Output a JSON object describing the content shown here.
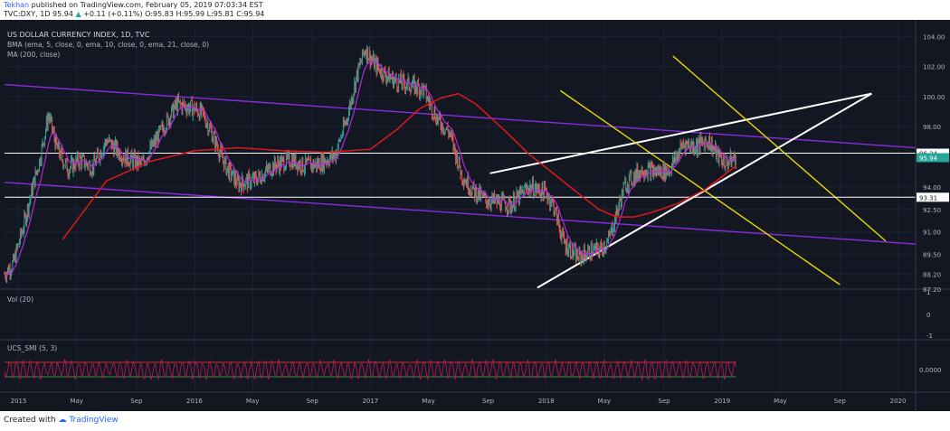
{
  "header": {
    "author": "Tekhan",
    "published_text": "published on TradingView.com, February 05, 2019 07:03:34 EST",
    "symbol_line_prefix": "TVC:DXY, 1D 95.94",
    "change_arrow": "▲",
    "change_text": "+0.11 (+0.11%) O:95.83 H:95.99 L:95.81 C:95.94"
  },
  "footer": {
    "created_with": "Created with",
    "brand": "TradingView"
  },
  "colors": {
    "background": "#131722",
    "grid": "#1e2230",
    "up": "#26a69a",
    "down": "#ef5350",
    "ma200": "#e01818",
    "ema": "#b42bd8",
    "channel": "#8a2be2",
    "wedge": "#ffffff",
    "parallel": "#e6d800",
    "osc_line": "#c2185b",
    "osc_upper": "#d32f2f",
    "osc_lower": "#388e3c"
  },
  "chart_data": [
    {
      "type": "line",
      "title": "US DOLLAR CURRENCY INDEX, 1D, TVC",
      "indicators": [
        "BMA (ema, 5, close, 0, ema, 10, close, 0, ema, 21, close, 0)",
        "MA (200, close)"
      ],
      "x_ticks": [
        "2015",
        "May",
        "Sep",
        "2016",
        "May",
        "Sep",
        "2017",
        "May",
        "Sep",
        "2018",
        "May",
        "Sep",
        "2019",
        "May",
        "Sep",
        "2020"
      ],
      "y_ticks": [
        "104.00",
        "102.00",
        "100.00",
        "98.00",
        "94.00",
        "92.50",
        "91.00",
        "89.50",
        "88.20",
        "87.20"
      ],
      "price_labels": {
        "upper": "96.24",
        "last": "95.94",
        "lower": "93.31"
      },
      "ylim": [
        87.2,
        104.8
      ],
      "series": [
        {
          "name": "DXY",
          "x": [
            2014.92,
            2014.97,
            2015.03,
            2015.08,
            2015.12,
            2015.17,
            2015.22,
            2015.28,
            2015.35,
            2015.42,
            2015.5,
            2015.6,
            2015.7,
            2015.8,
            2015.9,
            2016.0,
            2016.05,
            2016.1,
            2016.18,
            2016.25,
            2016.35,
            2016.45,
            2016.55,
            2016.62,
            2016.7,
            2016.8,
            2016.87,
            2016.92,
            2016.97,
            2017.02,
            2017.08,
            2017.15,
            2017.22,
            2017.3,
            2017.38,
            2017.45,
            2017.52,
            2017.58,
            2017.66,
            2017.72,
            2017.8,
            2017.9,
            2018.0,
            2018.04,
            2018.1,
            2018.18,
            2018.25,
            2018.3,
            2018.35,
            2018.45,
            2018.55,
            2018.62,
            2018.7,
            2018.78,
            2018.85,
            2018.92,
            2018.98,
            2019.02,
            2019.08
          ],
          "values": [
            88.2,
            88.9,
            91.5,
            94.0,
            95.8,
            98.8,
            96.5,
            95.2,
            95.8,
            95.3,
            97.1,
            96.0,
            95.5,
            97.5,
            99.5,
            99.2,
            98.8,
            97.5,
            95.3,
            94.2,
            94.5,
            95.4,
            95.8,
            95.4,
            95.5,
            96.1,
            98.7,
            101.3,
            103.2,
            102.2,
            101.5,
            101.0,
            100.8,
            100.5,
            98.5,
            97.6,
            94.8,
            93.8,
            93.1,
            93.0,
            92.8,
            94.0,
            93.6,
            92.8,
            90.3,
            89.3,
            89.7,
            89.8,
            90.3,
            94.2,
            95.2,
            95.0,
            95.1,
            96.9,
            96.7,
            97.1,
            96.0,
            95.6,
            95.94
          ]
        },
        {
          "name": "MA (200, close)",
          "x": [
            2015.25,
            2015.5,
            2015.75,
            2016.0,
            2016.25,
            2016.5,
            2016.75,
            2017.0,
            2017.15,
            2017.28,
            2017.4,
            2017.5,
            2017.6,
            2017.75,
            2017.9,
            2018.05,
            2018.2,
            2018.3,
            2018.4,
            2018.5,
            2018.6,
            2018.75,
            2018.9,
            2019.08
          ],
          "values": [
            90.5,
            94.4,
            95.7,
            96.4,
            96.6,
            96.4,
            96.3,
            96.5,
            97.8,
            99.2,
            99.9,
            100.2,
            99.5,
            97.9,
            96.2,
            94.8,
            93.4,
            92.5,
            92.0,
            92.0,
            92.3,
            92.9,
            93.8,
            95.4
          ]
        }
      ],
      "trendlines": [
        {
          "name": "channel-upper",
          "color": "purple",
          "from": [
            2014.92,
            100.8
          ],
          "to": [
            2020.1,
            96.6
          ]
        },
        {
          "name": "channel-lower",
          "color": "purple",
          "from": [
            2014.92,
            94.3
          ],
          "to": [
            2020.1,
            90.2
          ]
        },
        {
          "name": "wedge-upper",
          "color": "white",
          "from": [
            2017.68,
            94.9
          ],
          "to": [
            2019.85,
            100.2
          ]
        },
        {
          "name": "wedge-lower",
          "color": "white",
          "from": [
            2017.95,
            87.3
          ],
          "to": [
            2019.85,
            100.2
          ]
        },
        {
          "name": "parallel-upper",
          "color": "yellow",
          "from": [
            2018.72,
            102.7
          ],
          "to": [
            2019.93,
            90.4
          ]
        },
        {
          "name": "parallel-lower",
          "color": "yellow",
          "from": [
            2018.08,
            100.4
          ],
          "to": [
            2019.67,
            87.5
          ]
        }
      ],
      "horizontal_lines": [
        96.24,
        93.31
      ]
    },
    {
      "type": "bar",
      "title": "Vol (20)",
      "y_ticks": [
        "1",
        "0",
        "-1"
      ],
      "values": []
    },
    {
      "type": "line",
      "title": "UCS_SMI (5, 3)",
      "y_ticks": [
        "0.0000"
      ],
      "upper_band": 0.4,
      "lower_band": -0.4,
      "series": [
        {
          "name": "SMI",
          "x": [
            2014.92,
            2015.0,
            2015.08,
            2015.16,
            2015.24,
            2015.32,
            2015.4,
            2015.48,
            2015.56,
            2015.64,
            2015.72,
            2015.8,
            2015.88,
            2015.96,
            2016.04,
            2016.12,
            2016.2,
            2016.28,
            2016.36,
            2016.44,
            2016.52,
            2016.6,
            2016.68,
            2016.76,
            2016.84,
            2016.92,
            2017.0,
            2017.08,
            2017.16,
            2017.24,
            2017.32,
            2017.4,
            2017.48,
            2017.56,
            2017.64,
            2017.72,
            2017.8,
            2017.88,
            2017.96,
            2018.04,
            2018.12,
            2018.2,
            2018.28,
            2018.36,
            2018.44,
            2018.52,
            2018.6,
            2018.68,
            2018.76,
            2018.84,
            2018.92,
            2019.0,
            2019.08
          ],
          "values": [
            0.3,
            -0.4,
            0.35,
            -0.2,
            0.45,
            -0.45,
            0.2,
            -0.3,
            0.4,
            -0.5,
            0.3,
            -0.1,
            0.45,
            -0.4,
            0.25,
            -0.45,
            0.35,
            -0.2,
            0.4,
            -0.5,
            0.3,
            -0.35,
            0.45,
            -0.25,
            0.5,
            -0.4,
            0.35,
            -0.45,
            0.2,
            -0.3,
            0.4,
            -0.5,
            0.25,
            -0.4,
            0.45,
            -0.3,
            0.35,
            -0.45,
            0.3,
            -0.5,
            0.4,
            -0.2,
            0.45,
            -0.35,
            0.3,
            -0.45,
            0.4,
            -0.3,
            0.35,
            -0.5,
            0.25,
            -0.4,
            0.1
          ]
        }
      ]
    }
  ]
}
